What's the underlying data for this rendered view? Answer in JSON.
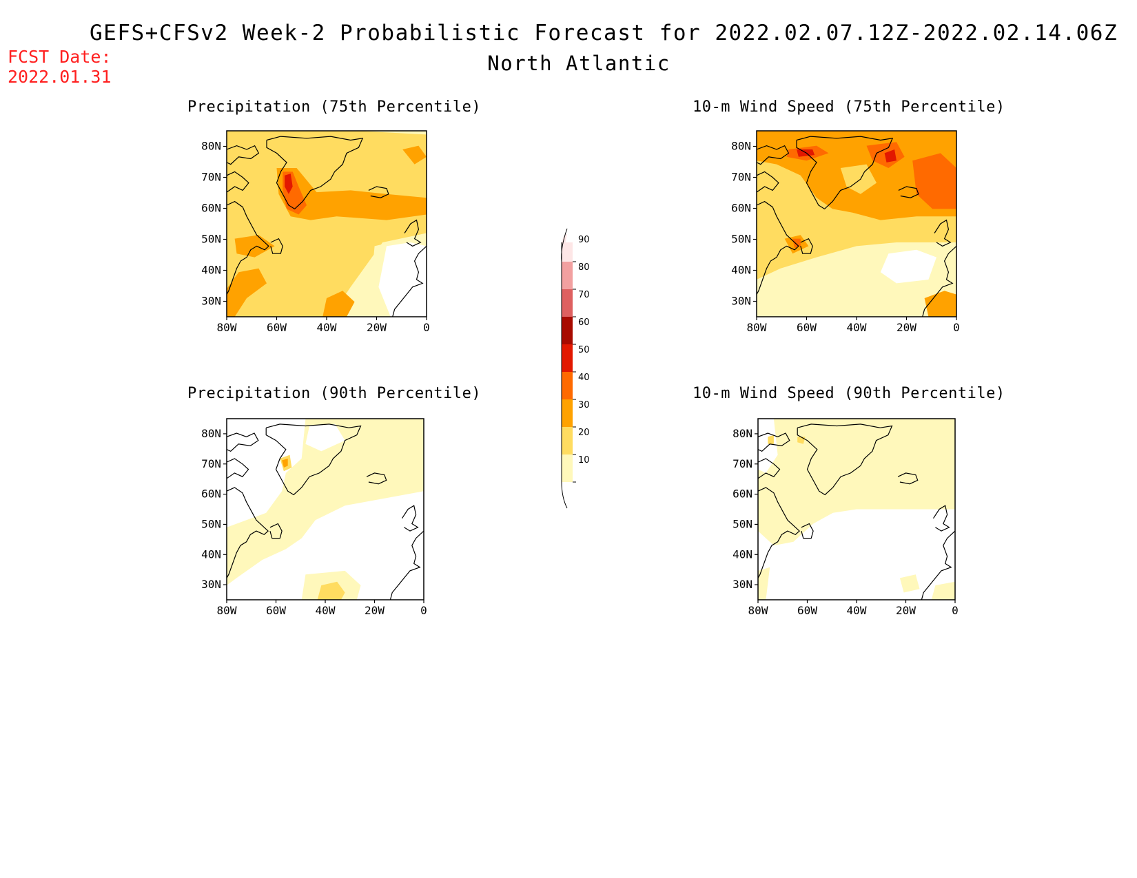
{
  "header": {
    "title": "GEFS+CFSv2 Week-2 Probabilistic Forecast for 2022.02.07.12Z-2022.02.14.06Z",
    "subtitle": "North Atlantic",
    "fcst_label": "FCST Date:",
    "fcst_date": "2022.01.31"
  },
  "axes": {
    "lat_labels": [
      "80N",
      "70N",
      "60N",
      "50N",
      "40N",
      "30N"
    ],
    "lon_labels": [
      "80W",
      "60W",
      "40W",
      "20W",
      "0"
    ]
  },
  "panels": [
    {
      "id": "precip-75",
      "title": "Precipitation (75th Percentile)"
    },
    {
      "id": "wind-75",
      "title": "10-m Wind Speed (75th Percentile)"
    },
    {
      "id": "precip-90",
      "title": "Precipitation (90th Percentile)"
    },
    {
      "id": "wind-90",
      "title": "10-m Wind Speed (90th Percentile)"
    }
  ],
  "colorbar": {
    "labels": [
      "90",
      "80",
      "70",
      "60",
      "50",
      "40",
      "30",
      "20",
      "10"
    ],
    "colors": [
      "#fde6e6",
      "#f2a0a0",
      "#de6060",
      "#a80a00",
      "#e21800",
      "#ff6a00",
      "#ffa200",
      "#ffdc60",
      "#fff8bb"
    ]
  },
  "palette": {
    "level_10": "#fff8bb",
    "level_20": "#ffdc60",
    "level_30": "#ffa200",
    "level_40": "#ff6a00",
    "level_50": "#e21800",
    "coast": "#000000",
    "title_red": "#ff2020"
  }
}
